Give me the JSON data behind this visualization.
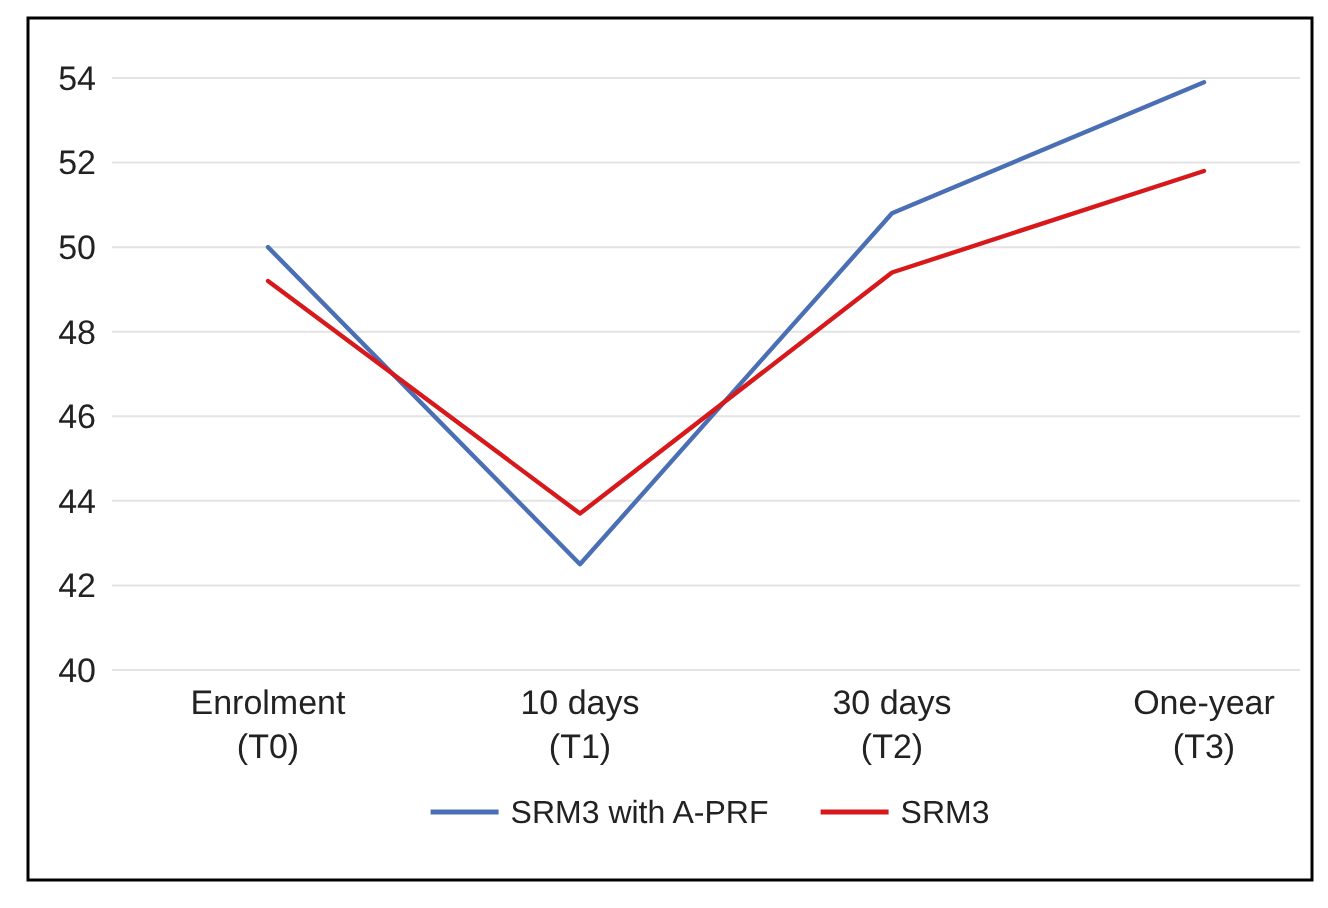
{
  "chart_data": {
    "type": "line",
    "categories": [
      "Enrolment\n(T0)",
      "10 days\n(T1)",
      "30 days\n(T2)",
      "One-year\n(T3)"
    ],
    "series": [
      {
        "name": "SRM3 with A-PRF",
        "color": "#4a6fb5",
        "values": [
          50.0,
          42.5,
          50.8,
          53.9
        ]
      },
      {
        "name": "SRM3",
        "color": "#d7191c",
        "values": [
          49.2,
          43.7,
          49.4,
          51.8
        ]
      }
    ],
    "ylim": [
      40,
      54
    ],
    "yticks": [
      40,
      42,
      44,
      46,
      48,
      50,
      52,
      54
    ],
    "grid": "y",
    "legend": "bottom",
    "marker": "none",
    "line_style": "solid"
  }
}
